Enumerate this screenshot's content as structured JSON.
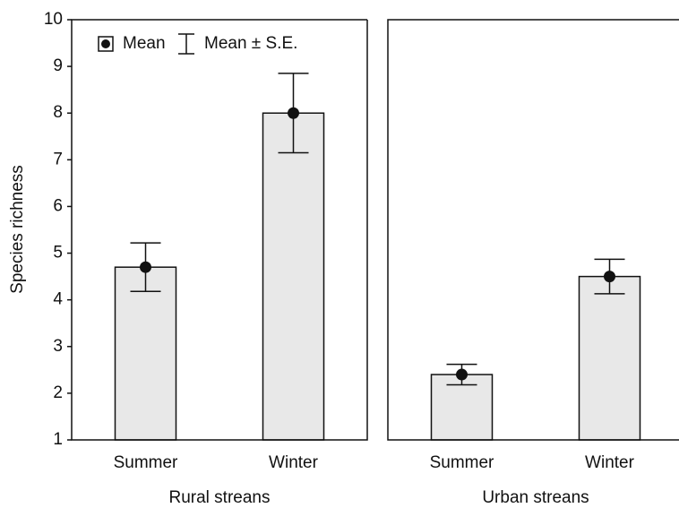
{
  "chart_data": [
    {
      "type": "bar",
      "categories": [
        "Summer",
        "Winter"
      ],
      "values": [
        4.7,
        8.0
      ],
      "errors": [
        0.52,
        0.85
      ],
      "xlabel": "Rural streans",
      "ylabel": "Species richness",
      "ylim": [
        1,
        10
      ],
      "yticks": [
        1,
        2,
        3,
        4,
        5,
        6,
        7,
        8,
        9,
        10
      ],
      "color": "#e8e8e8",
      "legend": [
        "Mean",
        "Mean ± S.E."
      ]
    },
    {
      "type": "bar",
      "categories": [
        "Summer",
        "Winter"
      ],
      "values": [
        2.4,
        4.5
      ],
      "errors": [
        0.22,
        0.37
      ],
      "xlabel": "Urban streans",
      "ylim": [
        1,
        10
      ],
      "color": "#e8e8e8"
    }
  ]
}
